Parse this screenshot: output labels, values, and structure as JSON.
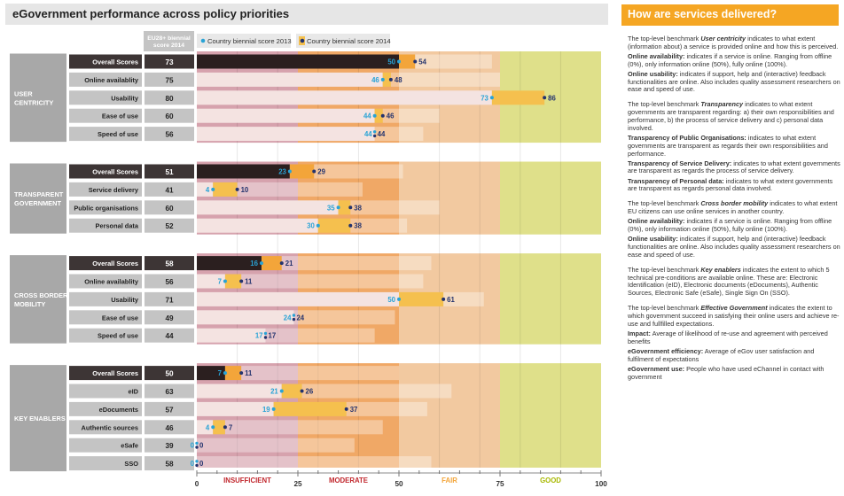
{
  "title": "eGovernment performance across policy priorities",
  "legend": {
    "eu_header": "EU28+ biennial score 2014",
    "series_2013": "Country biennial score 2013",
    "series_2014": "Country biennial score 2014"
  },
  "colors": {
    "insufficient": "#d6a2ad",
    "moderate": "#f0a866",
    "fair": "#f2c9a0",
    "good": "#dfe08a",
    "bar_2014": "#f5c04e",
    "bar_2013": "#f4e3e1",
    "overall_2014": "#f3a53a",
    "overall_2013": "#2b1f1f",
    "dot_2013": "#29a3d6",
    "dot_2014": "#23336e",
    "group_label_bg": "#a8a8a8",
    "row_label_bg": "#c4c4c4",
    "overall_label_bg": "#3d3535",
    "accent": "#f5a623"
  },
  "chart_data": {
    "type": "bar",
    "xlim": [
      0,
      100
    ],
    "xticks": [
      0,
      25,
      50,
      75,
      100
    ],
    "zones": [
      {
        "label": "INSUFFICIENT",
        "from": 0,
        "to": 25
      },
      {
        "label": "MODERATE",
        "from": 25,
        "to": 50
      },
      {
        "label": "FAIR",
        "from": 50,
        "to": 75
      },
      {
        "label": "GOOD",
        "from": 75,
        "to": 100
      }
    ],
    "groups": [
      {
        "label": "USER CENTRICITY",
        "rows": [
          {
            "label": "Overall Scores",
            "eu": 73,
            "s2013": 50,
            "s2014": 54,
            "overall": true
          },
          {
            "label": "Online availablity",
            "eu": 75,
            "s2013": 46,
            "s2014": 48
          },
          {
            "label": "Usability",
            "eu": 80,
            "s2013": 73,
            "s2014": 86
          },
          {
            "label": "Ease of use",
            "eu": 60,
            "s2013": 44,
            "s2014": 46
          },
          {
            "label": "Speed of use",
            "eu": 56,
            "s2013": 44,
            "s2014": 44
          }
        ]
      },
      {
        "label": "TRANSPARENT GOVERNMENT",
        "rows": [
          {
            "label": "Overall Scores",
            "eu": 51,
            "s2013": 23,
            "s2014": 29,
            "overall": true
          },
          {
            "label": "Service delivery",
            "eu": 41,
            "s2013": 4,
            "s2014": 10
          },
          {
            "label": "Public organisations",
            "eu": 60,
            "s2013": 35,
            "s2014": 38
          },
          {
            "label": "Personal data",
            "eu": 52,
            "s2013": 30,
            "s2014": 38
          }
        ]
      },
      {
        "label": "CROSS BORDER MOBILITY",
        "rows": [
          {
            "label": "Overall Scores",
            "eu": 58,
            "s2013": 16,
            "s2014": 21,
            "overall": true
          },
          {
            "label": "Online availablity",
            "eu": 56,
            "s2013": 7,
            "s2014": 11
          },
          {
            "label": "Usability",
            "eu": 71,
            "s2013": 50,
            "s2014": 61
          },
          {
            "label": "Ease of use",
            "eu": 49,
            "s2013": 24,
            "s2014": 24
          },
          {
            "label": "Speed of use",
            "eu": 44,
            "s2013": 17,
            "s2014": 17
          }
        ]
      },
      {
        "label": "KEY ENABLERS",
        "rows": [
          {
            "label": "Overall Scores",
            "eu": 50,
            "s2013": 7,
            "s2014": 11,
            "overall": true
          },
          {
            "label": "eID",
            "eu": 63,
            "s2013": 21,
            "s2014": 26
          },
          {
            "label": "eDocuments",
            "eu": 57,
            "s2013": 19,
            "s2014": 37
          },
          {
            "label": "Authentic sources",
            "eu": 46,
            "s2013": 4,
            "s2014": 7
          },
          {
            "label": "eSafe",
            "eu": 39,
            "s2013": 0,
            "s2014": 0
          },
          {
            "label": "SSO",
            "eu": 58,
            "s2013": 0,
            "s2014": 0
          }
        ]
      }
    ]
  },
  "sidebar": {
    "title": "How are services delivered?",
    "paragraphs": [
      {
        "pre": "The top-level benchmark ",
        "em": "User centricity",
        "post": " indicates to what extent (information about) a service is provided online and how this is perceived."
      },
      {
        "b": "Online availability:",
        "text": " indicates if a service is online. Ranging from offline (0%), only information online (50%), fully online (100%)."
      },
      {
        "b": "Online usability:",
        "text": " indicates if support, help and (interactive) feedback functionalities are online. Also includes quality assessment researchers on ease and speed of use."
      },
      {
        "pre": "The top-level benchmark ",
        "em": "Transparency",
        "post": " indicates to what extent governments are transparent regarding: a) their own responsibilities and performance, b) the process of service delivery and c) personal data involved."
      },
      {
        "b": "Transparency of Public Organisations:",
        "text": " indicates to what extent governments are transparent as regards their own responsibilities and performance."
      },
      {
        "b": "Transparency of Service Delivery:",
        "text": " indicates to what extent governments are transparent as regards the process of service delivery."
      },
      {
        "b": "Transparency of Personal data:",
        "text": " indicates to what extent governments are transparent as regards personal data involved."
      },
      {
        "pre": "The top-level benchmark ",
        "em": "Cross border mobility",
        "post": " indicates to what extent  EU citizens can use online services in another country."
      },
      {
        "b": "Online availability:",
        "text": " indicates if a service is online. Ranging from offline (0%), only information online (50%), fully online (100%)."
      },
      {
        "b": "Online usability:",
        "text": " indicates if support, help and (interactive) feedback functionalities are online. Also includes quality assessment researchers on ease and speed of use."
      },
      {
        "pre": "The top-level benchmark ",
        "em": "Key enablers",
        "post": " indicates the extent to which 5 technical pre-conditions are available online. These are: Electronic Identification (eID), Electronic documents (eDocuments), Authentic Sources, Electronic Safe (eSafe), Single Sign On (SSO)."
      },
      {
        "pre": "The top-level benchmark ",
        "em": "Effective Government",
        "post": " indicates the extent to which government succeed in satisfying their online users and achieve re-use and fullfilled expectations."
      },
      {
        "b": "Impact:",
        "text": " Average of likelihood of re-use and agreement with perceived benefits"
      },
      {
        "b": "eGovernment efficiency:",
        "text": " Average of eGov user satisfaction and fulfilment of expectations"
      },
      {
        "b": "eGovernment use:",
        "text": " People who have used eChannel in contact with government"
      }
    ]
  }
}
